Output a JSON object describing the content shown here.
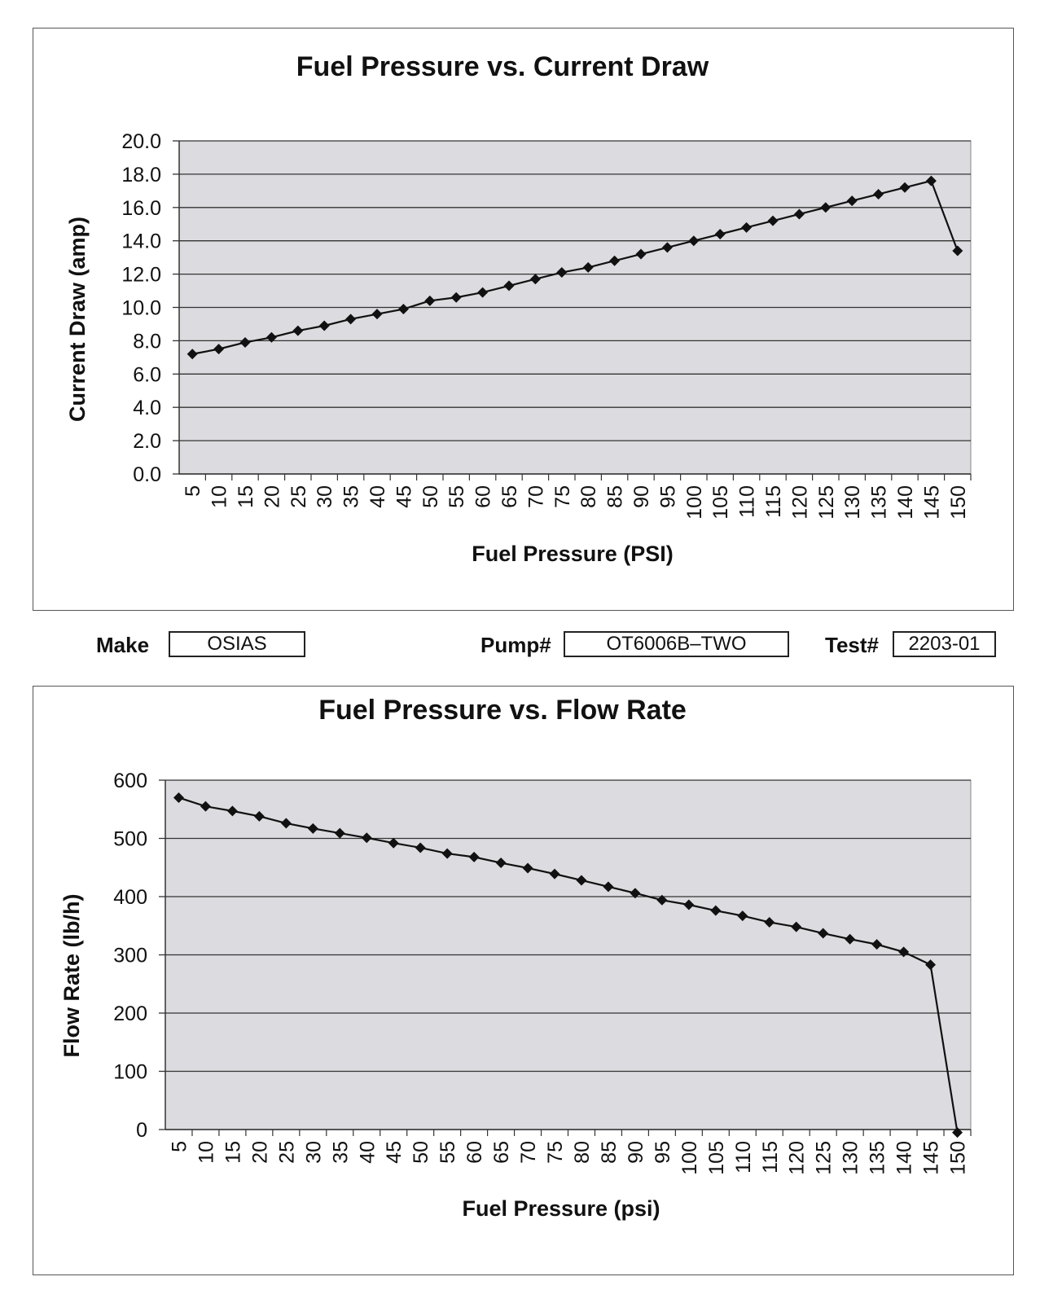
{
  "charts": {
    "chart_data": [
      {
        "type": "line",
        "title": "Fuel Pressure vs. Current Draw",
        "xlabel": "Fuel Pressure (PSI)",
        "ylabel": "Current Draw (amp)",
        "categories": [
          "5",
          "10",
          "15",
          "20",
          "25",
          "30",
          "35",
          "40",
          "45",
          "50",
          "55",
          "60",
          "65",
          "70",
          "75",
          "80",
          "85",
          "90",
          "95",
          "100",
          "105",
          "110",
          "115",
          "120",
          "125",
          "130",
          "135",
          "140",
          "145",
          "150"
        ],
        "series": [
          {
            "name": "Current Draw",
            "values": [
              7.2,
              7.5,
              7.9,
              8.2,
              8.6,
              8.9,
              9.3,
              9.6,
              9.9,
              10.4,
              10.6,
              10.9,
              11.3,
              11.7,
              12.1,
              12.4,
              12.8,
              13.2,
              13.6,
              14.0,
              14.4,
              14.8,
              15.2,
              15.6,
              16.0,
              16.4,
              16.8,
              17.2,
              17.6,
              13.4
            ]
          }
        ],
        "ylim": [
          0,
          20
        ],
        "yticks": [
          "0.0",
          "2.0",
          "4.0",
          "6.0",
          "8.0",
          "10.0",
          "12.0",
          "14.0",
          "16.0",
          "18.0",
          "20.0"
        ],
        "grid": true
      },
      {
        "type": "line",
        "title": "Fuel Pressure vs. Flow Rate",
        "xlabel": "Fuel Pressure (psi)",
        "ylabel": "Flow Rate (lb/h)",
        "categories": [
          "5",
          "10",
          "15",
          "20",
          "25",
          "30",
          "35",
          "40",
          "45",
          "50",
          "55",
          "60",
          "65",
          "70",
          "75",
          "80",
          "85",
          "90",
          "95",
          "100",
          "105",
          "110",
          "115",
          "120",
          "125",
          "130",
          "135",
          "140",
          "145",
          "150"
        ],
        "series": [
          {
            "name": "Flow Rate",
            "values": [
              570,
              555,
              547,
              538,
              526,
              517,
              509,
              501,
              492,
              484,
              474,
              468,
              458,
              449,
              439,
              428,
              417,
              406,
              394,
              386,
              376,
              367,
              356,
              348,
              337,
              327,
              318,
              305,
              283,
              -5
            ]
          }
        ],
        "ylim": [
          0,
          600
        ],
        "yticks": [
          "0",
          "100",
          "200",
          "300",
          "400",
          "500",
          "600"
        ],
        "grid": true
      }
    ]
  },
  "info": {
    "make_label": "Make",
    "make_value": "OSIAS",
    "pump_label": "Pump#",
    "pump_value": "OT6006B–TWO",
    "test_label": "Test#",
    "test_value": "2203-01"
  },
  "colors": {
    "plot_bg": "#dcdce0",
    "line": "#111111",
    "grid": "#333333"
  }
}
